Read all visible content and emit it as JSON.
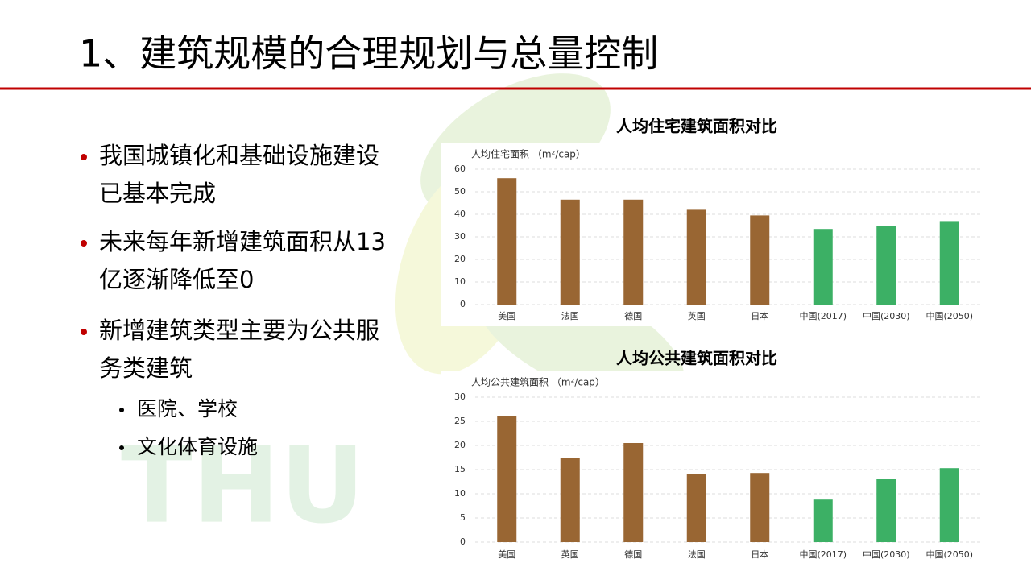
{
  "title": "1、建筑规模的合理规划与总量控制",
  "watermark": "THU",
  "bullets": [
    {
      "lines": [
        "我国城镇化和基础设施建设",
        "已基本完成"
      ]
    },
    {
      "lines": [
        "未来每年新增建筑面积从13",
        "亿逐渐降低至0"
      ]
    },
    {
      "lines": [
        "新增建筑类型主要为公共服",
        "务类建筑"
      ],
      "sub": [
        "医院、学校",
        "文化体育设施"
      ]
    }
  ],
  "chart_data": [
    {
      "type": "bar",
      "title": "人均住宅建筑面积对比",
      "y_label": "人均住宅面积 （m²/cap）",
      "categories": [
        "美国",
        "法国",
        "德国",
        "英国",
        "日本",
        "中国(2017)",
        "中国(2030)",
        "中国(2050)"
      ],
      "values": [
        56,
        46.5,
        46.5,
        42,
        39.5,
        33.5,
        35,
        37
      ],
      "colors": [
        "#996633",
        "#996633",
        "#996633",
        "#996633",
        "#996633",
        "#3cb065",
        "#3cb065",
        "#3cb065"
      ],
      "ylim": [
        0,
        60
      ],
      "yticks": [
        0,
        10,
        20,
        30,
        40,
        50,
        60
      ],
      "grid": true
    },
    {
      "type": "bar",
      "title": "人均公共建筑面积对比",
      "y_label": "人均公共建筑面积 （m²/cap）",
      "categories": [
        "美国",
        "英国",
        "德国",
        "法国",
        "日本",
        "中国(2017)",
        "中国(2030)",
        "中国(2050)"
      ],
      "values": [
        26,
        17.5,
        20.5,
        14,
        14.3,
        8.8,
        13,
        15.3
      ],
      "colors": [
        "#996633",
        "#996633",
        "#996633",
        "#996633",
        "#996633",
        "#3cb065",
        "#3cb065",
        "#3cb065"
      ],
      "ylim": [
        0,
        30
      ],
      "yticks": [
        0,
        5,
        10,
        15,
        20,
        25,
        30
      ],
      "grid": true
    }
  ]
}
